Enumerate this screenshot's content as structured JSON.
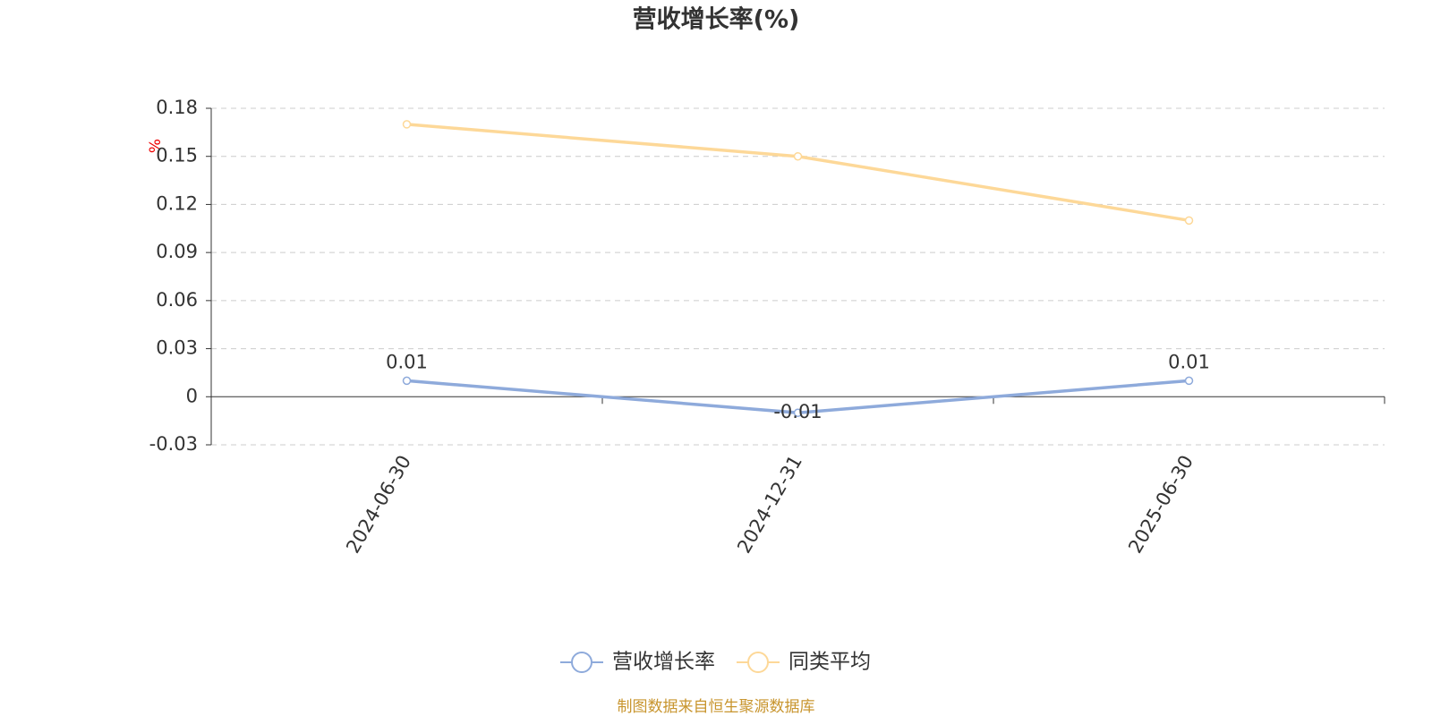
{
  "chart_data": {
    "type": "line",
    "title": "营收增长率(%)",
    "y_label": "%",
    "categories": [
      "2024-06-30",
      "2024-12-31",
      "2025-06-30"
    ],
    "series": [
      {
        "name": "营收增长率",
        "color": "#8eaadb",
        "values": [
          0.01,
          -0.01,
          0.01
        ],
        "show_labels": true
      },
      {
        "name": "同类平均",
        "color": "#fdd898",
        "values": [
          0.17,
          0.15,
          0.11
        ],
        "show_labels": false
      }
    ],
    "ylim": [
      -0.03,
      0.18
    ],
    "yticks": [
      -0.03,
      0,
      0.03,
      0.06,
      0.09,
      0.12,
      0.15,
      0.18
    ],
    "grid": true,
    "legend": "bottom",
    "source": "制图数据来自恒生聚源数据库"
  }
}
